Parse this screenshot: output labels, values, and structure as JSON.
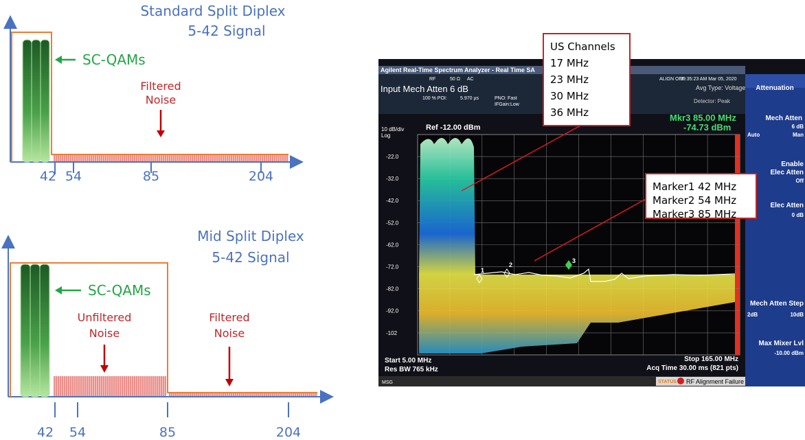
{
  "diagrams": [
    {
      "title": [
        "Standard Split Diplex",
        "5-42 Signal"
      ],
      "signal_label": "SC-QAMs",
      "noise_labels": [
        [
          "Filtered",
          "Noise"
        ]
      ],
      "ticks": [
        "42",
        "54",
        "85",
        "204"
      ]
    },
    {
      "title": [
        "Mid Split Diplex",
        "5-42 Signal"
      ],
      "signal_label": "SC-QAMs",
      "noise_labels": [
        [
          "Unfiltered",
          "Noise"
        ],
        [
          "Filtered",
          "Noise"
        ]
      ],
      "ticks": [
        "42",
        "54",
        "85",
        "204"
      ]
    }
  ],
  "analyzer": {
    "header": "Agilent Real-Time Spectrum Analyzer - Real Time SA",
    "status": [
      "RF",
      "50 Ω",
      "AC",
      "ALIGN OFF",
      "10:35:23 AM Mar 05, 2020"
    ],
    "input": "Input Mech Atten 6 dB",
    "poi": [
      "100 % POI:",
      "5.970 µs"
    ],
    "pno": [
      "PNO: Fast",
      "IFGain:Low"
    ],
    "avg": [
      "Avg Type: Voltage",
      "Detector: Peak"
    ],
    "marker_readout": [
      "Mkr3 85.00 MHz",
      "-74.73 dBm"
    ],
    "scale": [
      "10 dB/div",
      "Log"
    ],
    "ref": "Ref -12.00 dBm",
    "y_labels": [
      "-22.0",
      "-32.0",
      "-42.0",
      "-52.0",
      "-62.0",
      "-72.0",
      "-82.0",
      "-92.0",
      "-102"
    ],
    "markers": [
      "1",
      "2",
      "3"
    ],
    "bottom_left": [
      "Start 5.00 MHz",
      "Res BW 765 kHz"
    ],
    "bottom_right": [
      "Stop 165.00 MHz",
      "Acq Time  30.00 ms (821 pts)"
    ],
    "msg": "MSG",
    "status_bar": [
      "STATUS",
      "RF Alignment Failure"
    ],
    "panel": [
      "Attenuation",
      "Mech Atten",
      "6 dB",
      "Auto",
      "Man",
      "Enable",
      "Elec Atten",
      "Off",
      "Elec Atten",
      "0 dB",
      "Mech Atten Step",
      "2dB",
      "10dB",
      "Max Mixer Lvl",
      "-10.00 dBm"
    ]
  },
  "callouts": {
    "channels": [
      "US Channels",
      "17 MHz",
      "23 MHz",
      "30 MHz",
      "36 MHz"
    ],
    "markers": [
      "Marker1 42 MHz",
      "Marker2 54 MHz",
      "Marker3  85 MHz"
    ]
  }
}
